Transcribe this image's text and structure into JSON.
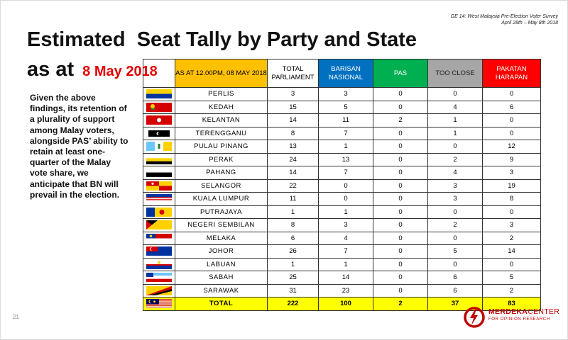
{
  "header": {
    "line1": "GE 14: West Malaysia Pre-Election Voter Survey",
    "line2": "April 28th – May 8th 2018"
  },
  "title": {
    "line1": "Estimated  Seat Tally by Party and State",
    "line2_prefix": "as at",
    "date": "8 May 2018"
  },
  "body_text": "Given the above findings, its retention of a plurality of support among Malay voters, alongside PAS’ ability to retain at least one-quarter of the Malay vote share, we anticipate that BN will prevail in the election.",
  "page_number": "21",
  "table": {
    "headers": {
      "date": "AS AT 12.00PM, 08 MAY 2018",
      "total": "TOTAL PARLIAMENT",
      "bn": "BARISAN NASIONAL",
      "pas": "PAS",
      "too_close": "TOO CLOSE",
      "ph": "PAKATAN HARAPAN"
    },
    "header_colors": {
      "date": "#ffc000",
      "bn": "#0070c0",
      "pas": "#00b050",
      "too_close": "#a6a6a6",
      "ph": "#ff0000"
    },
    "rows": [
      {
        "state": "PERLIS",
        "flag": "perlis-flag-icon",
        "total": "3",
        "bn": "3",
        "pas": "0",
        "too_close": "0",
        "ph": "0"
      },
      {
        "state": "KEDAH",
        "flag": "kedah-flag-icon",
        "total": "15",
        "bn": "5",
        "pas": "0",
        "too_close": "4",
        "ph": "6"
      },
      {
        "state": "KELANTAN",
        "flag": "kelantan-flag-icon",
        "total": "14",
        "bn": "11",
        "pas": "2",
        "too_close": "1",
        "ph": "0"
      },
      {
        "state": "TERENGGANU",
        "flag": "terengganu-flag-icon",
        "total": "8",
        "bn": "7",
        "pas": "0",
        "too_close": "1",
        "ph": "0"
      },
      {
        "state": "PULAU PINANG",
        "flag": "penang-flag-icon",
        "total": "13",
        "bn": "1",
        "pas": "0",
        "too_close": "0",
        "ph": "12"
      },
      {
        "state": "PERAK",
        "flag": "perak-flag-icon",
        "total": "24",
        "bn": "13",
        "pas": "0",
        "too_close": "2",
        "ph": "9"
      },
      {
        "state": "PAHANG",
        "flag": "pahang-flag-icon",
        "total": "14",
        "bn": "7",
        "pas": "0",
        "too_close": "4",
        "ph": "3"
      },
      {
        "state": "SELANGOR",
        "flag": "selangor-flag-icon",
        "total": "22",
        "bn": "0",
        "pas": "0",
        "too_close": "3",
        "ph": "19"
      },
      {
        "state": "KUALA LUMPUR",
        "flag": "kuala-lumpur-flag-icon",
        "total": "11",
        "bn": "0",
        "pas": "0",
        "too_close": "3",
        "ph": "8"
      },
      {
        "state": "PUTRAJAYA",
        "flag": "putrajaya-flag-icon",
        "total": "1",
        "bn": "1",
        "pas": "0",
        "too_close": "0",
        "ph": "0"
      },
      {
        "state": "NEGERI SEMBILAN",
        "flag": "negeri-sembilan-flag-icon",
        "total": "8",
        "bn": "3",
        "pas": "0",
        "too_close": "2",
        "ph": "3"
      },
      {
        "state": "MELAKA",
        "flag": "melaka-flag-icon",
        "total": "6",
        "bn": "4",
        "pas": "0",
        "too_close": "0",
        "ph": "2"
      },
      {
        "state": "JOHOR",
        "flag": "johor-flag-icon",
        "total": "26",
        "bn": "7",
        "pas": "0",
        "too_close": "5",
        "ph": "14"
      },
      {
        "state": "LABUAN",
        "flag": "labuan-flag-icon",
        "total": "1",
        "bn": "1",
        "pas": "0",
        "too_close": "0",
        "ph": "0"
      },
      {
        "state": "SABAH",
        "flag": "sabah-flag-icon",
        "total": "25",
        "bn": "14",
        "pas": "0",
        "too_close": "6",
        "ph": "5"
      },
      {
        "state": "SARAWAK",
        "flag": "sarawak-flag-icon",
        "total": "31",
        "bn": "23",
        "pas": "0",
        "too_close": "6",
        "ph": "2"
      }
    ],
    "total_row": {
      "state": "TOTAL",
      "flag": "malaysia-flag-icon",
      "total": "222",
      "bn": "100",
      "pas": "2",
      "too_close": "37",
      "ph": "83"
    }
  },
  "logo": {
    "name_part1": "MERDEKA",
    "name_part2": "CENTER",
    "subtitle": "FOR OPINION RESEARCH",
    "color": "#c00000"
  }
}
